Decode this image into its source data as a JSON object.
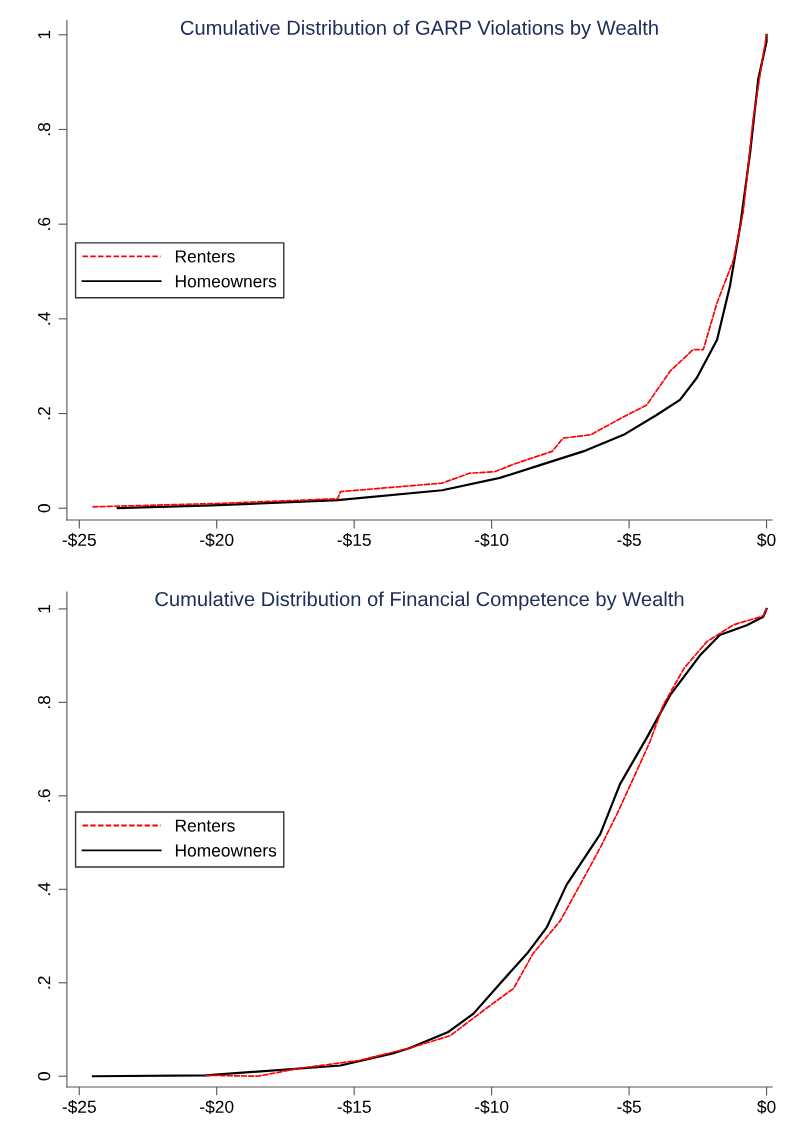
{
  "chart_data": [
    {
      "type": "line",
      "title": "Cumulative Distribution of GARP Violations by Wealth",
      "xlim": [
        -25.45,
        0.2
      ],
      "xticks": [
        {
          "value": -25,
          "label": "-$25"
        },
        {
          "value": -20,
          "label": "-$20"
        },
        {
          "value": -15,
          "label": "-$15"
        },
        {
          "value": -10,
          "label": "-$10"
        },
        {
          "value": -5,
          "label": "-$5"
        },
        {
          "value": 0,
          "label": "$0"
        }
      ],
      "ylim": [
        -0.025,
        1.03
      ],
      "yticks": [
        {
          "value": 0,
          "label": "0"
        },
        {
          "value": 0.2,
          "label": ".2"
        },
        {
          "value": 0.4,
          "label": ".4"
        },
        {
          "value": 0.6,
          "label": ".6"
        },
        {
          "value": 0.8,
          "label": ".8"
        },
        {
          "value": 1,
          "label": "1"
        }
      ],
      "grid": false,
      "legend": "left",
      "marker": "none",
      "series": [
        {
          "name": "Renters",
          "color": "#ff0000",
          "line_style": "dashed",
          "x": [
            -24.5,
            -20,
            -15.6,
            -15.5,
            -11.8,
            -10.8,
            -9.9,
            -9.1,
            -7.8,
            -7.4,
            -6.4,
            -5.3,
            -4.36,
            -3.5,
            -2.67,
            -2.3,
            -1.8,
            -1.2,
            -0.85,
            -0.49,
            -0.17,
            0
          ],
          "values": [
            0.003,
            0.01,
            0.02,
            0.035,
            0.053,
            0.074,
            0.077,
            0.095,
            0.12,
            0.148,
            0.155,
            0.19,
            0.218,
            0.29,
            0.335,
            0.335,
            0.434,
            0.525,
            0.625,
            0.82,
            0.94,
            1.0
          ]
        },
        {
          "name": "Homeowners",
          "color": "#000000",
          "line_style": "solid",
          "x": [
            -23.6,
            -20.2,
            -15.6,
            -11.8,
            -9.7,
            -8.24,
            -6.67,
            -5.2,
            -4.0,
            -3.15,
            -2.54,
            -1.8,
            -1.33,
            -0.96,
            -0.6,
            -0.3,
            0,
            0
          ],
          "values": [
            0.0,
            0.006,
            0.017,
            0.038,
            0.064,
            0.091,
            0.12,
            0.155,
            0.197,
            0.229,
            0.275,
            0.356,
            0.47,
            0.596,
            0.75,
            0.907,
            0.985,
            1.0
          ]
        }
      ]
    },
    {
      "type": "line",
      "title": "Cumulative Distribution of Financial Competence by Wealth",
      "xlim": [
        -25.45,
        0.2
      ],
      "xticks": [
        {
          "value": -25,
          "label": "-$25"
        },
        {
          "value": -20,
          "label": "-$20"
        },
        {
          "value": -15,
          "label": "-$15"
        },
        {
          "value": -10,
          "label": "-$10"
        },
        {
          "value": -5,
          "label": "-$5"
        },
        {
          "value": 0,
          "label": "$0"
        }
      ],
      "ylim": [
        -0.023,
        1.036
      ],
      "yticks": [
        {
          "value": 0,
          "label": "0"
        },
        {
          "value": 0.2,
          "label": ".2"
        },
        {
          "value": 0.4,
          "label": ".4"
        },
        {
          "value": 0.6,
          "label": ".6"
        },
        {
          "value": 0.8,
          "label": ".8"
        },
        {
          "value": 1,
          "label": "1"
        }
      ],
      "grid": false,
      "legend": "left",
      "marker": "none",
      "series": [
        {
          "name": "Renters",
          "color": "#ff0000",
          "line_style": "dashed",
          "x": [
            -20.4,
            -18.5,
            -17.0,
            -14.8,
            -13.0,
            -11.5,
            -10.2,
            -9.2,
            -8.5,
            -7.5,
            -6.78,
            -6.05,
            -5.45,
            -4.84,
            -4.24,
            -3.75,
            -3.0,
            -2.17,
            -1.2,
            -0.12,
            0
          ],
          "values": [
            0.002,
            0.0,
            0.017,
            0.034,
            0.06,
            0.087,
            0.145,
            0.188,
            0.262,
            0.333,
            0.41,
            0.489,
            0.56,
            0.638,
            0.716,
            0.795,
            0.873,
            0.93,
            0.966,
            0.985,
            1.0
          ]
        },
        {
          "name": "Homeowners",
          "color": "#000000",
          "line_style": "solid",
          "x": [
            -24.5,
            -20.4,
            -15.5,
            -13.6,
            -13.0,
            -11.6,
            -10.66,
            -9.7,
            -8.72,
            -8.0,
            -7.27,
            -6.05,
            -5.33,
            -4.36,
            -3.5,
            -2.4,
            -1.7,
            -0.72,
            -0.12,
            0
          ],
          "values": [
            0.0,
            0.002,
            0.023,
            0.049,
            0.06,
            0.094,
            0.134,
            0.198,
            0.262,
            0.318,
            0.41,
            0.518,
            0.625,
            0.724,
            0.816,
            0.902,
            0.944,
            0.965,
            0.983,
            1.0
          ]
        }
      ]
    }
  ]
}
